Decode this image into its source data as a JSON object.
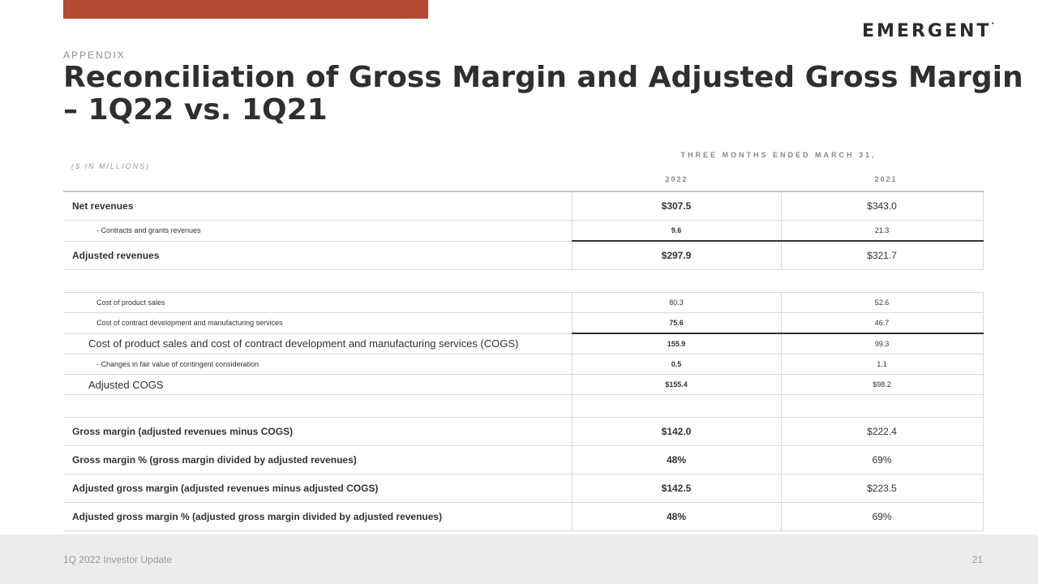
{
  "brand": {
    "logo_text": "EMERGENT",
    "accent_color": "#b34a33"
  },
  "header": {
    "eyebrow": "APPENDIX",
    "title": "Reconciliation of Gross Margin and Adjusted Gross Margin – 1Q22 vs. 1Q21"
  },
  "table": {
    "units": "($ IN MILLIONS)",
    "period": "THREE MONTHS ENDED MARCH 31,",
    "col_2022": "2022",
    "col_2021": "2021",
    "rows": [
      {
        "label": "Net revenues",
        "v2022": "$307.5",
        "v2021": "$343.0"
      },
      {
        "label": "- Contracts and grants revenues",
        "v2022": "9.6",
        "v2021": "21.3"
      },
      {
        "label": "Adjusted revenues",
        "v2022": "$297.9",
        "v2021": "$321.7"
      },
      {
        "label": "Cost of product sales",
        "v2022": "80.3",
        "v2021": "52.6"
      },
      {
        "label": "Cost of contract development and manufacturing services",
        "v2022": "75.6",
        "v2021": "46.7"
      },
      {
        "label": "Cost of product sales and cost of contract development and manufacturing services (COGS)",
        "v2022": "155.9",
        "v2021": "99.3"
      },
      {
        "label": "- Changes in fair value of contingent consideration",
        "v2022": "0.5",
        "v2021": "1.1"
      },
      {
        "label": "Adjusted COGS",
        "v2022": "$155.4",
        "v2021": "$98.2"
      },
      {
        "label": "Gross margin (adjusted revenues minus COGS)",
        "v2022": "$142.0",
        "v2021": "$222.4"
      },
      {
        "label": "Gross margin % (gross margin divided by adjusted revenues)",
        "v2022": "48%",
        "v2021": "69%"
      },
      {
        "label": "Adjusted gross margin (adjusted revenues minus adjusted COGS)",
        "v2022": "$142.5",
        "v2021": "$223.5"
      },
      {
        "label": "Adjusted gross margin % (adjusted gross margin divided by adjusted revenues)",
        "v2022": "48%",
        "v2021": "69%"
      }
    ]
  },
  "footer": {
    "left": "1Q 2022 Investor Update",
    "page": "21"
  }
}
